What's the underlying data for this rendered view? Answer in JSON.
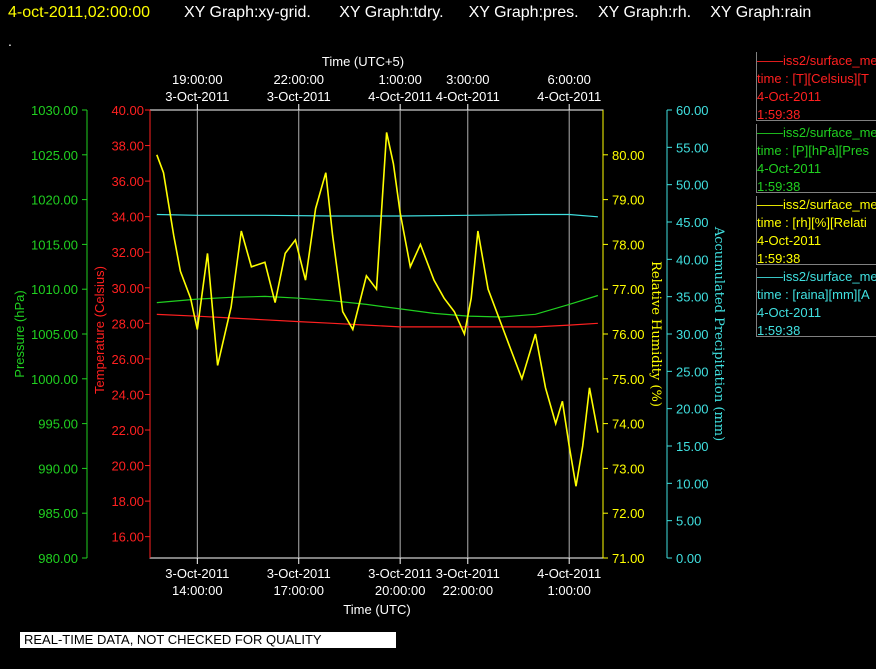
{
  "header": {
    "date": "4-oct-2011,02:00:00",
    "panels": [
      "XY Graph:xy-grid.",
      "XY Graph:tdry.",
      "XY Graph:pres.",
      "XY Graph:rh.",
      "XY Graph:rain"
    ],
    "dot": "."
  },
  "disclaimer": "REAL-TIME DATA, NOT CHECKED FOR QUALITY",
  "legend": [
    {
      "line1": "iss2/surface_me",
      "line2": "time : [T][Celsius][T",
      "line3": "4-Oct-2011",
      "line4": "1:59:38",
      "color": "#ff2020"
    },
    {
      "line1": "iss2/surface_me",
      "line2": "time : [P][hPa][Pres",
      "line3": "4-Oct-2011",
      "line4": "1:59:38",
      "color": "#20d020"
    },
    {
      "line1": "iss2/surface_me",
      "line2": "time : [rh][%][Relati",
      "line3": "4-Oct-2011",
      "line4": "1:59:38",
      "color": "#ffff00"
    },
    {
      "line1": "iss2/surface_me",
      "line2": "time : [raina][mm][A",
      "line3": "4-Oct-2011",
      "line4": "1:59:38",
      "color": "#40e0e0"
    }
  ],
  "chart_data": {
    "type": "line",
    "x_axis_bottom": {
      "label": "Time (UTC)",
      "ticks": [
        {
          "date": "3-Oct-2011",
          "time": "14:00:00",
          "hour": 0
        },
        {
          "date": "3-Oct-2011",
          "time": "17:00:00",
          "hour": 3
        },
        {
          "date": "3-Oct-2011",
          "time": "20:00:00",
          "hour": 6
        },
        {
          "date": "3-Oct-2011",
          "time": "22:00:00",
          "hour": 8
        },
        {
          "date": "4-Oct-2011",
          "time": "1:00:00",
          "hour": 11
        }
      ],
      "range": [
        -1.4,
        12.0
      ]
    },
    "x_axis_top": {
      "label": "Time (UTC+5)",
      "ticks": [
        {
          "time": "19:00:00",
          "date": "3-Oct-2011"
        },
        {
          "time": "22:00:00",
          "date": "3-Oct-2011"
        },
        {
          "time": "1:00:00",
          "date": "4-Oct-2011"
        },
        {
          "time": "3:00:00",
          "date": "4-Oct-2011"
        },
        {
          "time": "6:00:00",
          "date": "4-Oct-2011"
        }
      ]
    },
    "axes": {
      "pressure": {
        "label": "Pressure (hPa)",
        "ylim": [
          980,
          1030
        ],
        "ticks": [
          "980.00",
          "985.00",
          "990.00",
          "995.00",
          "1000.00",
          "1005.00",
          "1010.00",
          "1015.00",
          "1020.00",
          "1025.00",
          "1030.00"
        ],
        "color": "#20d020"
      },
      "temperature": {
        "label": "Temperature (Celsius)",
        "ylim": [
          14.8,
          40
        ],
        "ticks": [
          "16.00",
          "18.00",
          "20.00",
          "22.00",
          "24.00",
          "26.00",
          "28.00",
          "30.00",
          "32.00",
          "34.00",
          "36.00",
          "38.00",
          "40.00"
        ],
        "color": "#ff2020"
      },
      "rh": {
        "label": "Relative Humidity (%)",
        "ylim": [
          71,
          81
        ],
        "ticks": [
          "71.00",
          "72.00",
          "73.00",
          "74.00",
          "75.00",
          "76.00",
          "77.00",
          "78.00",
          "79.00",
          "80.00"
        ],
        "color": "#ffff00"
      },
      "rain": {
        "label": "Accumulated Precipitation (mm)",
        "ylim": [
          0,
          60
        ],
        "ticks": [
          "0.00",
          "5.00",
          "10.00",
          "15.00",
          "20.00",
          "25.00",
          "30.00",
          "35.00",
          "40.00",
          "45.00",
          "50.00",
          "55.00",
          "60.00"
        ],
        "color": "#40e0e0"
      }
    },
    "grid": true,
    "series": [
      {
        "name": "rain",
        "axis": "rain",
        "color": "#40e0e0",
        "x": [
          -1.2,
          0.0,
          2.0,
          4.0,
          6.0,
          8.0,
          10.0,
          11.0,
          11.85
        ],
        "y": [
          46.0,
          45.9,
          45.9,
          45.8,
          45.8,
          45.9,
          46.0,
          46.0,
          45.7
        ]
      },
      {
        "name": "pressure",
        "axis": "pressure",
        "color": "#20d020",
        "x": [
          -1.2,
          0.0,
          1.0,
          2.0,
          3.0,
          4.0,
          5.0,
          6.0,
          7.0,
          8.0,
          9.0,
          10.0,
          11.0,
          11.85
        ],
        "y": [
          1008.5,
          1008.9,
          1009.1,
          1009.2,
          1009.0,
          1008.7,
          1008.3,
          1007.8,
          1007.3,
          1007.0,
          1006.9,
          1007.2,
          1008.3,
          1009.3
        ]
      },
      {
        "name": "temperature",
        "axis": "temperature",
        "color": "#ff2020",
        "x": [
          -1.2,
          0.0,
          1.0,
          2.0,
          3.0,
          4.0,
          5.0,
          6.0,
          7.0,
          8.0,
          9.0,
          10.0,
          11.0,
          11.85
        ],
        "y": [
          28.5,
          28.4,
          28.3,
          28.2,
          28.1,
          28.0,
          27.9,
          27.8,
          27.8,
          27.8,
          27.8,
          27.8,
          27.9,
          28.0
        ]
      },
      {
        "name": "rh",
        "axis": "rh",
        "color": "#ffff00",
        "x": [
          -1.2,
          -1.0,
          -0.7,
          -0.5,
          -0.2,
          0.0,
          0.3,
          0.6,
          1.0,
          1.3,
          1.6,
          2.0,
          2.3,
          2.6,
          2.9,
          3.2,
          3.5,
          3.8,
          4.0,
          4.3,
          4.6,
          5.0,
          5.3,
          5.6,
          5.8,
          6.0,
          6.3,
          6.6,
          7.0,
          7.3,
          7.6,
          7.9,
          8.1,
          8.3,
          8.6,
          9.0,
          9.3,
          9.6,
          10.0,
          10.3,
          10.6,
          10.8,
          11.0,
          11.2,
          11.4,
          11.6,
          11.85
        ],
        "y": [
          80.0,
          79.6,
          78.2,
          77.4,
          76.8,
          76.1,
          77.8,
          75.3,
          76.6,
          78.3,
          77.5,
          77.6,
          76.7,
          77.8,
          78.1,
          77.2,
          78.8,
          79.6,
          78.2,
          76.5,
          76.1,
          77.3,
          77.0,
          80.5,
          79.8,
          78.7,
          77.5,
          78.0,
          77.2,
          76.8,
          76.5,
          76.0,
          76.8,
          78.3,
          77.0,
          76.2,
          75.6,
          75.0,
          76.0,
          74.8,
          74.0,
          74.5,
          73.5,
          72.6,
          73.5,
          74.8,
          73.8
        ]
      }
    ]
  }
}
